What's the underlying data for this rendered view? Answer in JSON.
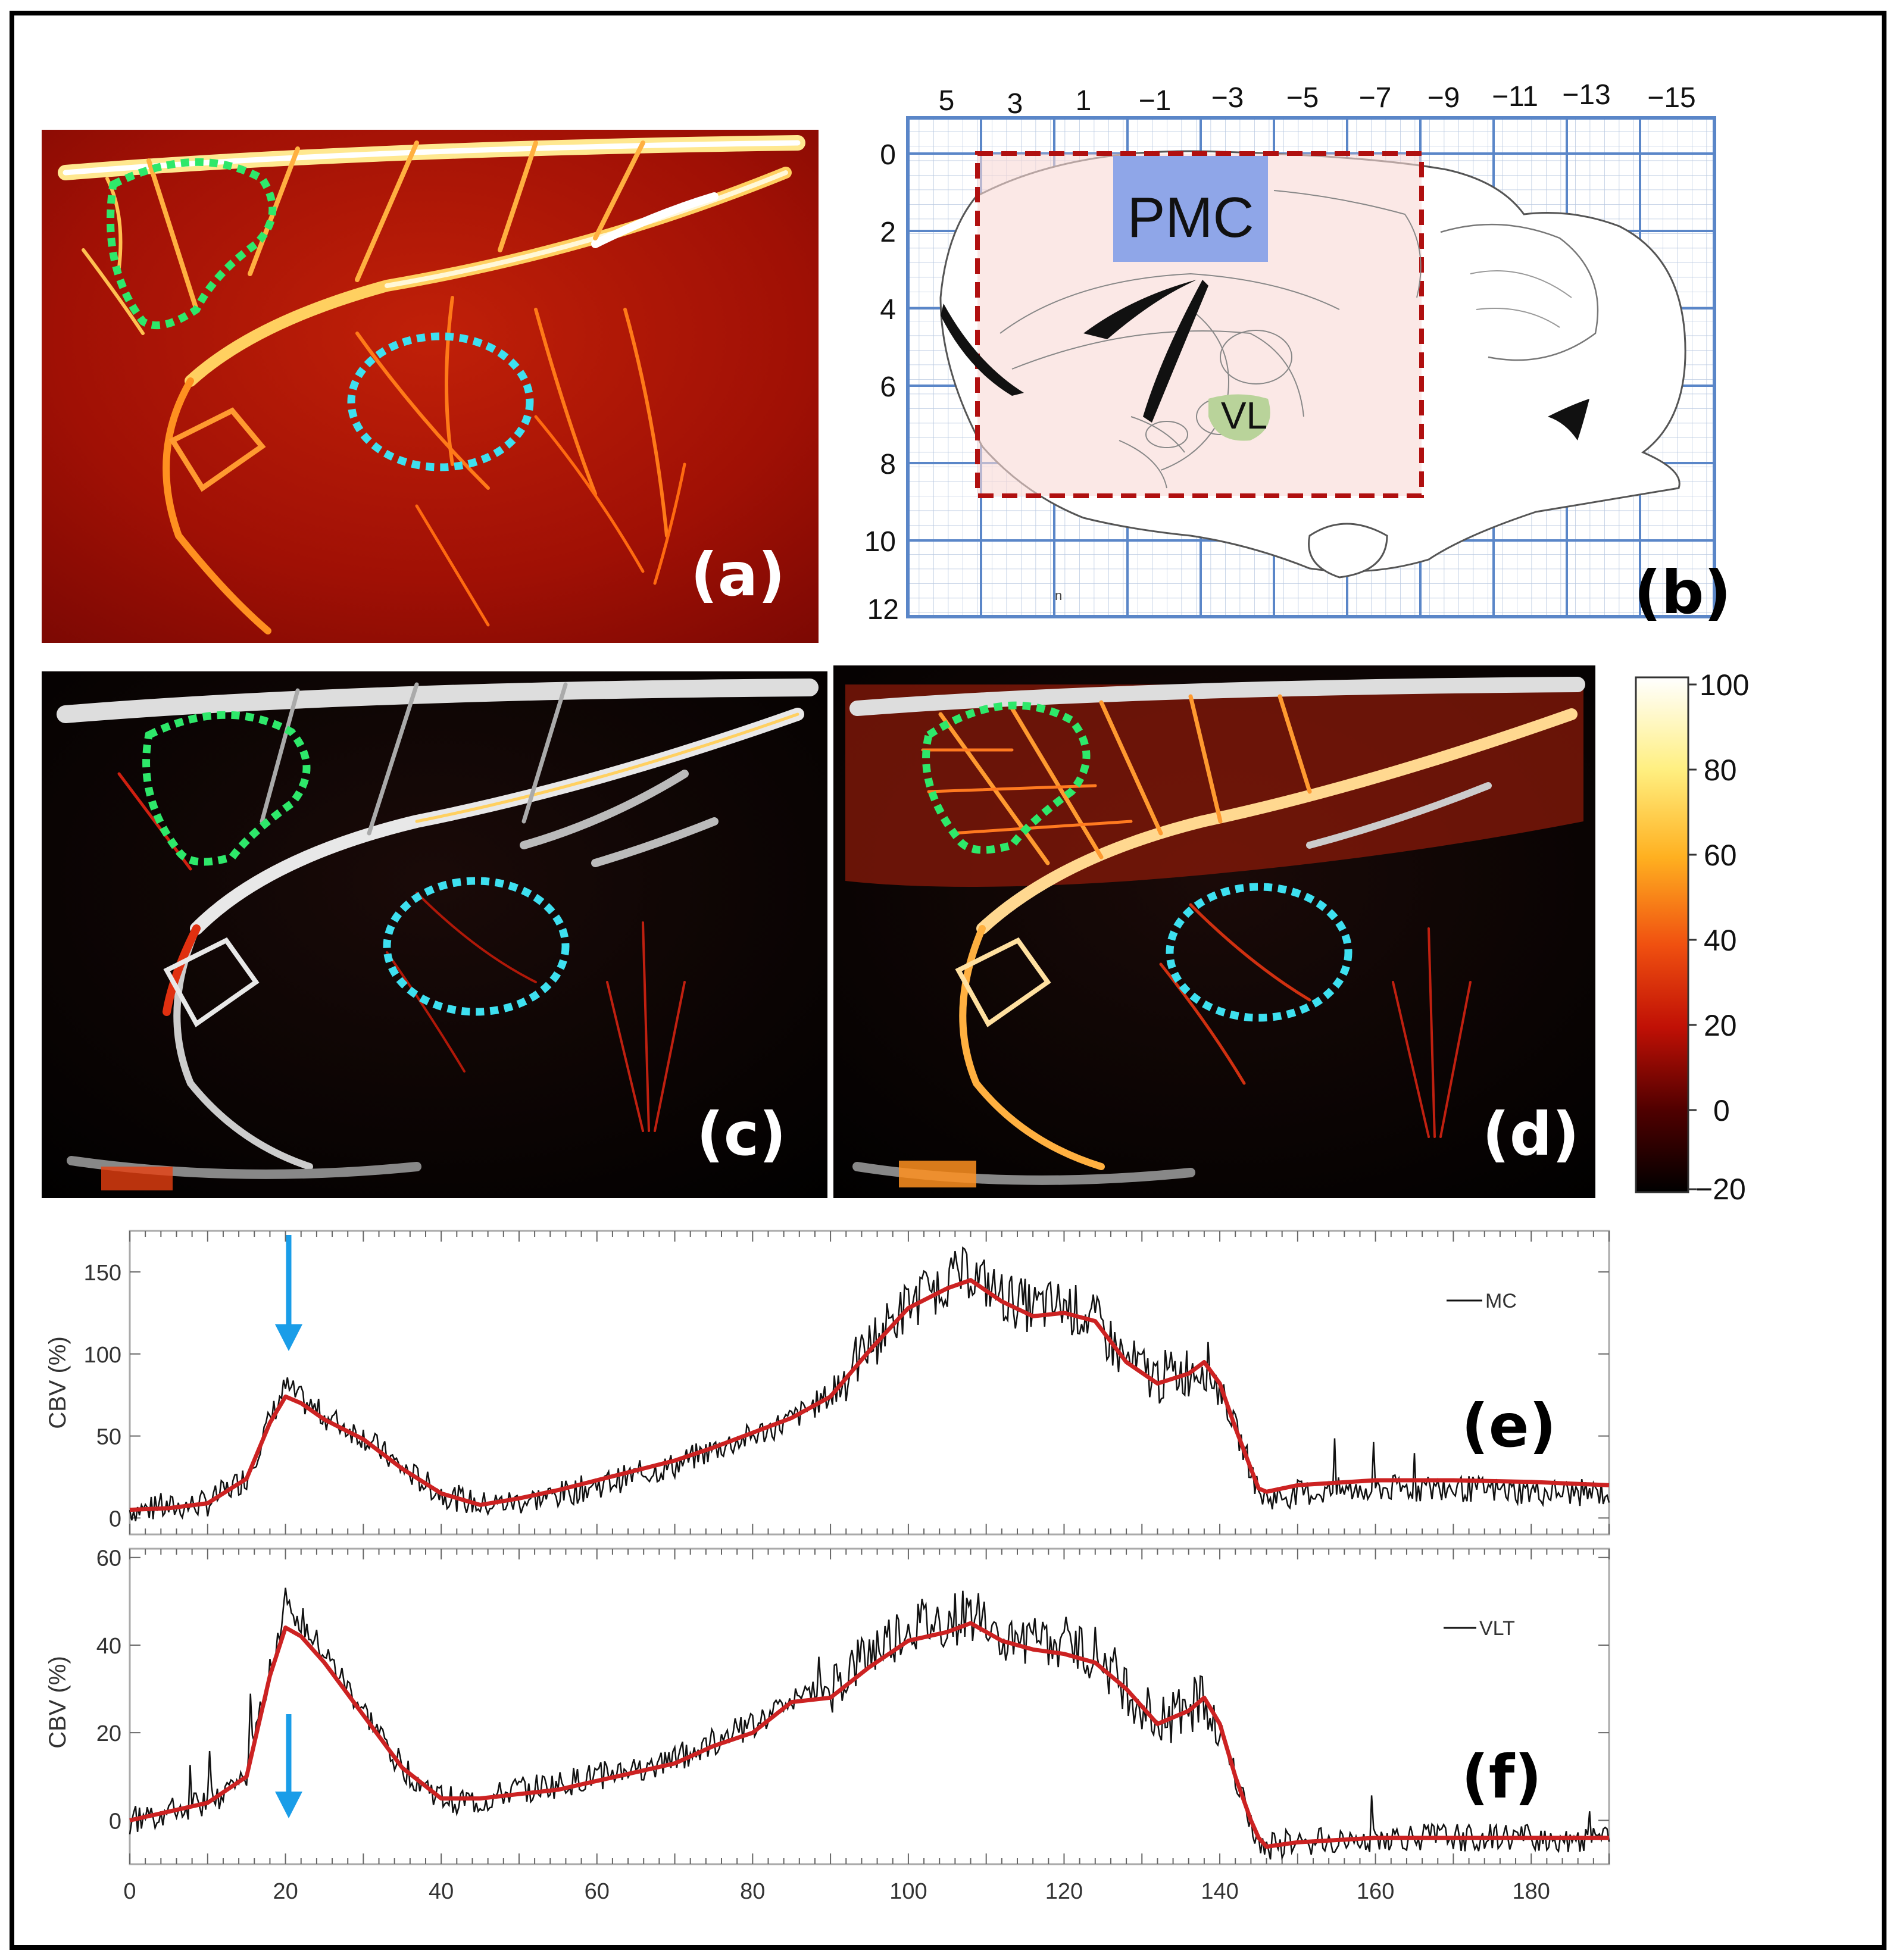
{
  "panels": {
    "a": {
      "label": "(a)"
    },
    "b": {
      "label": "(b)",
      "x_ticks": [
        "5",
        "3",
        "1",
        "−1",
        "−3",
        "−5",
        "−7",
        "−9",
        "−11",
        "−13",
        "−15"
      ],
      "y_ticks": [
        "0",
        "2",
        "4",
        "6",
        "8",
        "10",
        "12"
      ],
      "regions": {
        "pmc": "PMC",
        "vl": "VL"
      },
      "small_mark": "n"
    },
    "c": {
      "label": "(c)"
    },
    "d": {
      "label": "(d)"
    },
    "colorbar": {
      "ticks": [
        "100",
        "80",
        "60",
        "40",
        "20",
        "0",
        "−20"
      ]
    },
    "e": {
      "label": "(e)"
    },
    "f": {
      "label": "(f)"
    }
  },
  "colors": {
    "green_roi": "#2ee86a",
    "cyan_roi": "#3ee0f0",
    "pmc_fill": "#8fa6e8",
    "vl_fill": "#b9d39a",
    "grid_blue": "#5a86c8",
    "box_red": "#b01010",
    "trace_black": "#111111",
    "fit_red": "#cc2222",
    "arrow_blue": "#1a9de8"
  },
  "chart_data": [
    {
      "type": "line",
      "panel": "e",
      "ylabel": "CBV (%)",
      "xlabel": "",
      "xlim": [
        0,
        190
      ],
      "ylim": [
        -10,
        175
      ],
      "x_ticks": [],
      "y_ticks": [
        0,
        50,
        100,
        150
      ],
      "legend": "MC",
      "annotation": "arrow at x=20",
      "series": [
        {
          "name": "MC",
          "kind": "raw",
          "x": [
            0,
            5,
            10,
            15,
            18,
            20,
            22,
            25,
            30,
            35,
            40,
            45,
            50,
            55,
            60,
            65,
            70,
            75,
            80,
            85,
            90,
            95,
            100,
            105,
            108,
            112,
            116,
            120,
            124,
            128,
            132,
            136,
            138,
            140,
            142,
            144,
            145,
            146,
            150,
            160,
            170,
            180,
            190
          ],
          "y": [
            5,
            6,
            9,
            25,
            60,
            80,
            72,
            62,
            50,
            30,
            15,
            8,
            10,
            14,
            20,
            26,
            32,
            42,
            50,
            60,
            75,
            105,
            130,
            145,
            150,
            135,
            128,
            130,
            120,
            95,
            85,
            90,
            95,
            80,
            55,
            30,
            15,
            12,
            15,
            18,
            18,
            16,
            15
          ]
        },
        {
          "name": "MC fit",
          "kind": "smooth",
          "x": [
            0,
            5,
            10,
            15,
            18,
            20,
            22,
            25,
            30,
            35,
            40,
            45,
            50,
            55,
            60,
            65,
            70,
            75,
            80,
            85,
            90,
            95,
            100,
            105,
            108,
            112,
            116,
            120,
            124,
            128,
            132,
            136,
            138,
            140,
            142,
            144,
            145,
            146,
            150,
            160,
            170,
            180,
            190
          ],
          "y": [
            5,
            6,
            9,
            24,
            58,
            74,
            70,
            60,
            48,
            30,
            15,
            8,
            12,
            17,
            23,
            29,
            35,
            43,
            52,
            61,
            74,
            102,
            128,
            140,
            145,
            132,
            123,
            125,
            120,
            95,
            82,
            88,
            95,
            82,
            55,
            30,
            18,
            16,
            20,
            23,
            23,
            22,
            20
          ]
        }
      ]
    },
    {
      "type": "line",
      "panel": "f",
      "ylabel": "CBV (%)",
      "xlabel": "",
      "xlim": [
        0,
        190
      ],
      "ylim": [
        -10,
        62
      ],
      "x_ticks": [
        0,
        20,
        40,
        60,
        80,
        100,
        120,
        140,
        160,
        180
      ],
      "y_ticks": [
        0,
        20,
        40,
        60
      ],
      "legend": "VLT",
      "annotation": "arrow at x=20",
      "series": [
        {
          "name": "VLT",
          "kind": "raw",
          "x": [
            0,
            5,
            10,
            15,
            18,
            20,
            22,
            25,
            30,
            35,
            40,
            45,
            50,
            55,
            60,
            65,
            70,
            75,
            80,
            85,
            90,
            95,
            100,
            105,
            108,
            112,
            116,
            120,
            124,
            128,
            132,
            136,
            138,
            140,
            142,
            144,
            145,
            146,
            150,
            160,
            170,
            180,
            190
          ],
          "y": [
            0,
            2,
            4,
            10,
            35,
            50,
            45,
            38,
            25,
            12,
            5,
            4,
            7,
            8,
            10,
            12,
            14,
            18,
            22,
            28,
            30,
            38,
            44,
            45,
            47,
            42,
            40,
            40,
            38,
            30,
            22,
            26,
            28,
            22,
            10,
            0,
            -5,
            -6,
            -5,
            -4,
            -4,
            -4,
            -4
          ]
        },
        {
          "name": "VLT fit",
          "kind": "smooth",
          "x": [
            0,
            5,
            10,
            15,
            18,
            20,
            22,
            25,
            30,
            35,
            40,
            45,
            50,
            55,
            60,
            65,
            70,
            75,
            80,
            85,
            90,
            95,
            100,
            105,
            108,
            112,
            116,
            120,
            124,
            128,
            132,
            136,
            138,
            140,
            142,
            144,
            145,
            146,
            150,
            160,
            170,
            180,
            190
          ],
          "y": [
            0,
            2,
            4,
            10,
            33,
            44,
            42,
            36,
            24,
            12,
            5,
            5,
            6,
            7,
            9,
            11,
            13,
            17,
            20,
            27,
            28,
            35,
            41,
            43,
            45,
            41,
            39,
            38,
            36,
            30,
            22,
            25,
            28,
            22,
            10,
            0,
            -4,
            -6,
            -5,
            -4,
            -4,
            -4,
            -4
          ]
        }
      ]
    }
  ]
}
